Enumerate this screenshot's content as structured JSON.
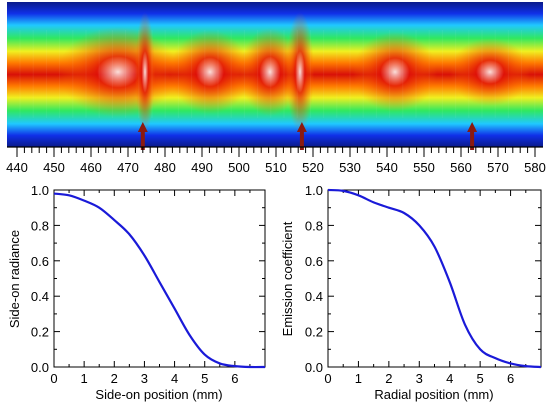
{
  "chart_data": [
    {
      "type": "heatmap",
      "title": "",
      "xlabel": "",
      "ylabel": "",
      "xlim": [
        440,
        580
      ],
      "x_ticks": [
        "440",
        "450",
        "460",
        "470",
        "480",
        "490",
        "500",
        "510",
        "520",
        "530",
        "540",
        "550",
        "560",
        "570",
        "580"
      ],
      "markers": [
        {
          "x": 474,
          "label": ""
        },
        {
          "x": 517,
          "label": ""
        },
        {
          "x": 563,
          "label": ""
        }
      ],
      "colormap": [
        "#0a1a8a",
        "#1030e8",
        "#20c8ff",
        "#30e860",
        "#f0f020",
        "#ff7a00",
        "#d81008",
        "#ffffff"
      ],
      "marker_color": "#8b1a10"
    },
    {
      "type": "line",
      "title": "",
      "xlabel": "Side-on position (mm)",
      "ylabel": "Side-on radiance",
      "xlim": [
        0,
        7
      ],
      "ylim": [
        0.0,
        1.0
      ],
      "x_ticks": [
        "0",
        "1",
        "2",
        "3",
        "4",
        "5",
        "6"
      ],
      "y_ticks": [
        "0.0",
        "0.2",
        "0.4",
        "0.6",
        "0.8",
        "1.0"
      ],
      "series": [
        {
          "name": "",
          "color": "#1a1ad8",
          "x": [
            0,
            0.5,
            1.0,
            1.5,
            2.0,
            2.5,
            3.0,
            3.5,
            4.0,
            4.5,
            5.0,
            5.5,
            6.0,
            6.5,
            7.0
          ],
          "y": [
            0.98,
            0.97,
            0.94,
            0.9,
            0.83,
            0.75,
            0.63,
            0.48,
            0.33,
            0.18,
            0.07,
            0.02,
            0.005,
            0.0,
            0.0
          ]
        }
      ]
    },
    {
      "type": "line",
      "title": "",
      "xlabel": "Radial position (mm)",
      "ylabel": "Emission coefficient",
      "xlim": [
        0,
        7
      ],
      "ylim": [
        0.0,
        1.0
      ],
      "x_ticks": [
        "0",
        "1",
        "2",
        "3",
        "4",
        "5",
        "6"
      ],
      "y_ticks": [
        "0.0",
        "0.2",
        "0.4",
        "0.6",
        "0.8",
        "1.0"
      ],
      "series": [
        {
          "name": "",
          "color": "#1a1ad8",
          "x": [
            0,
            0.5,
            1.0,
            1.5,
            2.0,
            2.5,
            3.0,
            3.5,
            4.0,
            4.5,
            5.0,
            5.5,
            6.0,
            6.5,
            7.0
          ],
          "y": [
            1.0,
            0.995,
            0.97,
            0.93,
            0.9,
            0.87,
            0.8,
            0.68,
            0.48,
            0.24,
            0.1,
            0.05,
            0.02,
            0.005,
            0.0
          ]
        }
      ]
    }
  ]
}
